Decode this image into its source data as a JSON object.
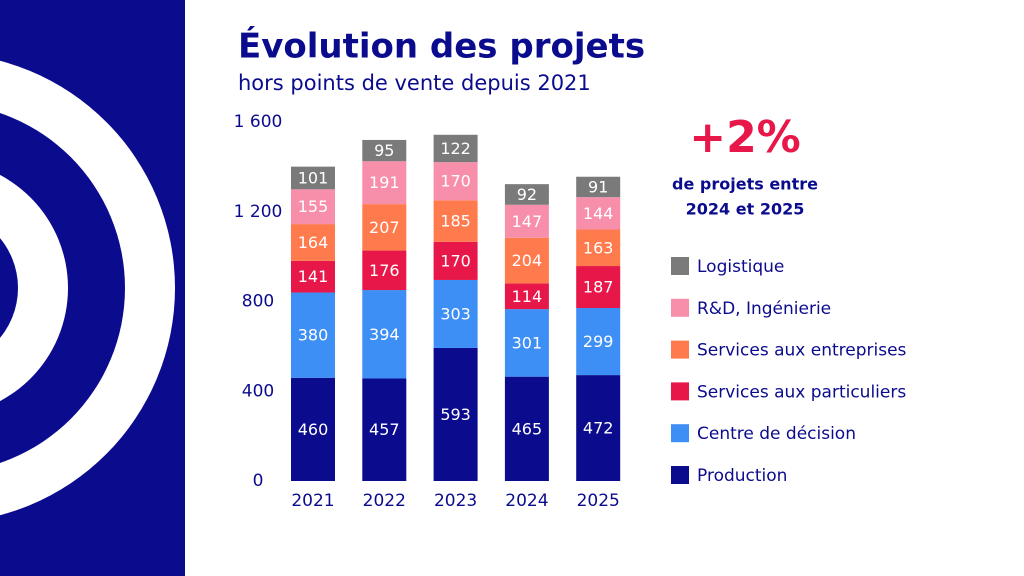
{
  "chart_data": {
    "type": "stacked_bar",
    "title": "Évolution des projets",
    "subtitle": "hors points de vente depuis 2021",
    "categories": [
      "2021",
      "2022",
      "2023",
      "2024",
      "2025"
    ],
    "series": [
      {
        "name": "Production",
        "color": "#0b0b8e",
        "values": [
          460,
          457,
          593,
          465,
          472
        ]
      },
      {
        "name": "Centre de décision",
        "color": "#3d8ef5",
        "values": [
          380,
          394,
          303,
          301,
          299
        ]
      },
      {
        "name": "Services aux particuliers",
        "color": "#e8174a",
        "values": [
          141,
          176,
          170,
          114,
          187
        ]
      },
      {
        "name": "Services aux entreprises",
        "color": "#ff7a4d",
        "values": [
          164,
          207,
          185,
          204,
          163
        ]
      },
      {
        "name": "R&D, Ingénierie",
        "color": "#f78fab",
        "values": [
          155,
          191,
          170,
          147,
          144
        ]
      },
      {
        "name": "Logistique",
        "color": "#7a7a7a",
        "values": [
          101,
          95,
          122,
          92,
          91
        ]
      }
    ],
    "ylim": [
      0,
      1600
    ],
    "yticks": [
      0,
      400,
      800,
      {
        "value": 1200,
        "label": "1 200"
      },
      {
        "value": 1600,
        "label": "1 600"
      }
    ],
    "grid": false,
    "annotation": "+2%",
    "annotation_text": [
      "de projets entre",
      "2024 et 2025"
    ]
  }
}
